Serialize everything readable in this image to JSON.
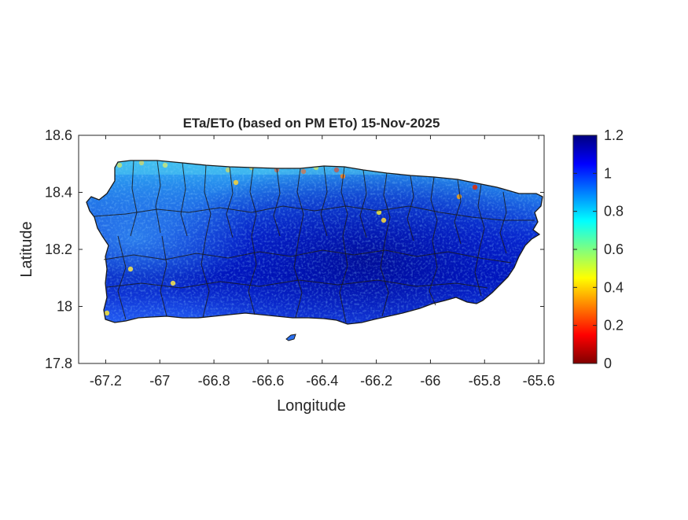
{
  "figure": {
    "title": "ETa/ETo (based on PM ETo) 15-Nov-2025"
  },
  "map": {
    "x_label": "Longitude",
    "y_label": "Latitude",
    "xlim": [
      -67.3,
      -65.58
    ],
    "ylim": [
      17.8,
      18.6
    ],
    "x_ticks": [
      {
        "value": -67.2,
        "label": "-67.2"
      },
      {
        "value": -67.0,
        "label": "-67"
      },
      {
        "value": -66.8,
        "label": "-66.8"
      },
      {
        "value": -66.6,
        "label": "-66.6"
      },
      {
        "value": -66.4,
        "label": "-66.4"
      },
      {
        "value": -66.2,
        "label": "-66.2"
      },
      {
        "value": -66.0,
        "label": "-66"
      },
      {
        "value": -65.8,
        "label": "-65.8"
      },
      {
        "value": -65.6,
        "label": "-65.6"
      }
    ],
    "y_ticks": [
      {
        "value": 17.8,
        "label": "17.8"
      },
      {
        "value": 18.0,
        "label": "18"
      },
      {
        "value": 18.2,
        "label": "18.2"
      },
      {
        "value": 18.4,
        "label": "18.4"
      },
      {
        "value": 18.6,
        "label": "18.6"
      }
    ]
  },
  "colorbar": {
    "range": [
      0,
      1.2
    ],
    "ticks": [
      {
        "value": 0,
        "label": "0"
      },
      {
        "value": 0.2,
        "label": "0.2"
      },
      {
        "value": 0.4,
        "label": "0.4"
      },
      {
        "value": 0.6,
        "label": "0.6"
      },
      {
        "value": 0.8,
        "label": "0.8"
      },
      {
        "value": 1.0,
        "label": "1"
      },
      {
        "value": 1.2,
        "label": "1.2"
      }
    ],
    "colormap": "jet"
  },
  "colors": {
    "island_base": "#2a5ff5",
    "island_dark": "#0010b8",
    "north_coast": "#39b8f5",
    "boundary": "#1a1a1a"
  }
}
